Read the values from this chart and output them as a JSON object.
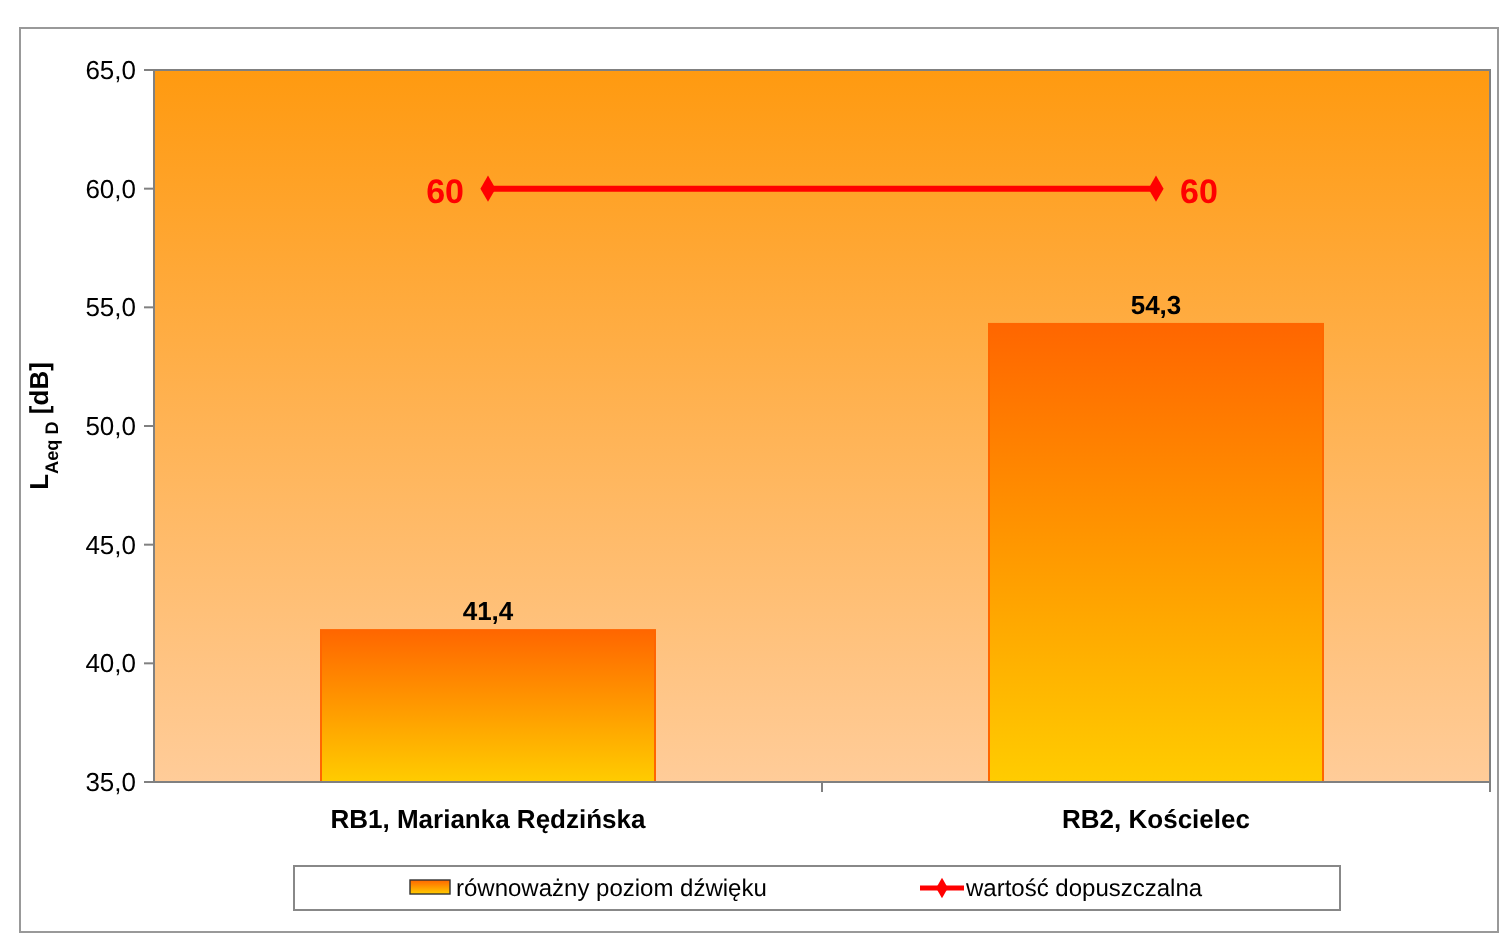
{
  "chart_data": {
    "type": "bar",
    "categories": [
      "RB1, Marianka Rędzińska",
      "RB2, Kościelec"
    ],
    "ylabel": "L$_{Aeq D}$ [dB]",
    "ylim": [
      35,
      65
    ],
    "yticks": [
      {
        "value": 35,
        "label": "35,0"
      },
      {
        "value": 40,
        "label": "40,0"
      },
      {
        "value": 45,
        "label": "45,0"
      },
      {
        "value": 50,
        "label": "50,0"
      },
      {
        "value": 55,
        "label": "55,0"
      },
      {
        "value": 60,
        "label": "60,0"
      },
      {
        "value": 65,
        "label": "65,0"
      }
    ],
    "series": [
      {
        "name": "równoważny poziom dźwięku",
        "color": "#ff6600",
        "values": [
          41.4,
          54.3
        ],
        "value_labels": [
          "41,4",
          "54,3"
        ]
      },
      {
        "name": "wartość dopuszczalna",
        "type": "line",
        "color": "#ff0000",
        "values": [
          60,
          60
        ],
        "value_labels": [
          "60",
          "60"
        ],
        "marker": "diamond"
      }
    ],
    "grid": false,
    "legend": "bottom"
  }
}
